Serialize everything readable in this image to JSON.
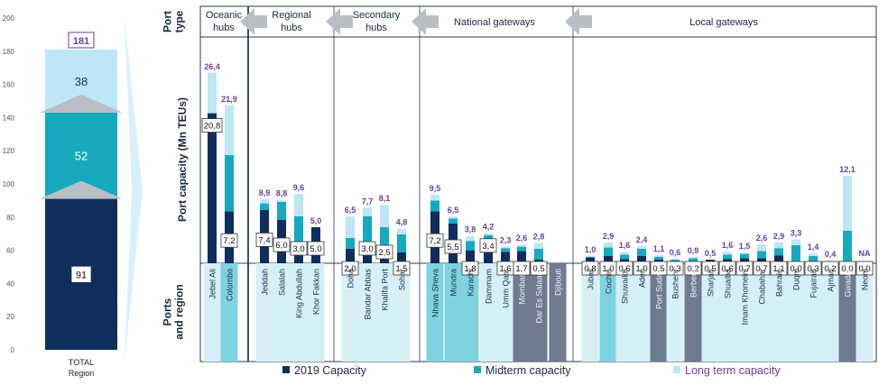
{
  "colors": {
    "capacity_2019": "#0f2e5c",
    "midterm": "#17aabf",
    "longterm": "#bde7f4",
    "label_purple": "#6a3d9a",
    "frame": "#2b3a55",
    "grid": "#9aa6b8",
    "band_light": "#d6f0f7",
    "band_mid": "#7fd3e0",
    "band_dark": "#6e7b90",
    "arrow": "#b9bec5",
    "axis_text": "#555555"
  },
  "chart_data": [
    {
      "id": "total",
      "type": "stacked-bar",
      "ylim": [
        0,
        200
      ],
      "yticks": [
        0,
        20,
        40,
        60,
        80,
        100,
        120,
        140,
        160,
        180,
        200
      ],
      "category": "TOTAL Region",
      "segments": [
        {
          "name": "2019 Capacity",
          "value": 91
        },
        {
          "name": "Midterm capacity",
          "value": 52
        },
        {
          "name": "Long term capacity",
          "value": 38
        }
      ],
      "total": "181"
    },
    {
      "id": "ports",
      "type": "stacked-bar",
      "ylabel": "Port capacity (Mn TEUs)",
      "legend": [
        "2019 Capacity",
        "Midterm capacity",
        "Long term capacity"
      ],
      "ports": [
        {
          "name": "Jebel Ali",
          "type": "Oceanic hubs",
          "c2019": 20.8,
          "mid": 0.0,
          "long": 5.6,
          "label2019": "20,8",
          "total": "26,4",
          "band": "light"
        },
        {
          "name": "Colombo",
          "type": "Oceanic hubs",
          "c2019": 7.2,
          "mid": 7.8,
          "long": 6.9,
          "label2019": "7,2",
          "total": "21,9",
          "band": "mid"
        },
        {
          "name": "Jeddah",
          "type": "Regional hubs",
          "c2019": 7.4,
          "mid": 0.9,
          "long": 0.6,
          "label2019": "7,4",
          "total": "8,9",
          "band": "light"
        },
        {
          "name": "Salalah",
          "type": "Regional hubs",
          "c2019": 6.0,
          "mid": 2.5,
          "long": 0.3,
          "label2019": "6,0",
          "total": "8,8",
          "band": "light"
        },
        {
          "name": "King Abdullah",
          "type": "Regional hubs",
          "c2019": 3.0,
          "mid": 3.5,
          "long": 3.1,
          "label2019": "3,0",
          "total": "9,6",
          "band": "light"
        },
        {
          "name": "Khor Fakkan",
          "type": "Regional hubs",
          "c2019": 5.0,
          "mid": 0.0,
          "long": 0.0,
          "label2019": "5,0",
          "total": "5,0",
          "band": "light"
        },
        {
          "name": "Doha",
          "type": "Secondary hubs",
          "c2019": 2.0,
          "mid": 1.5,
          "long": 3.0,
          "label2019": "2,0",
          "total": "6,5",
          "band": "light"
        },
        {
          "name": "Bandar Abbas",
          "type": "Secondary hubs",
          "c2019": 3.0,
          "mid": 3.5,
          "long": 1.2,
          "label2019": "3,0",
          "total": "7,7",
          "band": "light"
        },
        {
          "name": "Khalifa Port",
          "type": "Secondary hubs",
          "c2019": 2.5,
          "mid": 2.5,
          "long": 3.1,
          "label2019": "2,5",
          "total": "8,1",
          "band": "light"
        },
        {
          "name": "Sohar",
          "type": "Secondary hubs",
          "c2019": 1.5,
          "mid": 2.5,
          "long": 0.8,
          "label2019": "1,5",
          "total": "4,8",
          "band": "light"
        },
        {
          "name": "Nhava Sheva",
          "type": "National gateways",
          "c2019": 7.2,
          "mid": 1.5,
          "long": 0.8,
          "label2019": "7,2",
          "total": "9,5",
          "band": "mid"
        },
        {
          "name": "Mundra",
          "type": "National gateways",
          "c2019": 5.5,
          "mid": 0.7,
          "long": 0.3,
          "label2019": "5,5",
          "total": "6,5",
          "band": "mid"
        },
        {
          "name": "Karachi",
          "type": "National gateways",
          "c2019": 1.8,
          "mid": 1.3,
          "long": 0.7,
          "label2019": "1,8",
          "total": "3,8",
          "band": "mid"
        },
        {
          "name": "Dammam",
          "type": "National gateways",
          "c2019": 3.4,
          "mid": 0.5,
          "long": 0.3,
          "label2019": "3,4",
          "total": "4,2",
          "band": "light"
        },
        {
          "name": "Umm Qasr",
          "type": "National gateways",
          "c2019": 1.6,
          "mid": 0.5,
          "long": 0.2,
          "label2019": "1,6",
          "total": "2,3",
          "band": "light"
        },
        {
          "name": "Mombasa",
          "type": "National gateways",
          "c2019": 1.7,
          "mid": 0.6,
          "long": 0.3,
          "label2019": "1,7",
          "total": "2,6",
          "band": "dark"
        },
        {
          "name": "Dar Es Salaam",
          "type": "National gateways",
          "c2019": 0.5,
          "mid": 1.5,
          "long": 0.8,
          "label2019": "0,5",
          "total": "2,8",
          "band": "dark"
        },
        {
          "name": "Djibouti",
          "type": "National gateways",
          "c2019": 0,
          "mid": 0,
          "long": 0,
          "label2019": "",
          "total": "",
          "band": "dark"
        },
        {
          "name": "Jubail",
          "type": "Local gateways",
          "c2019": 0.8,
          "mid": 0.1,
          "long": 0.1,
          "label2019": "0,8",
          "total": "1,0",
          "band": "light"
        },
        {
          "name": "Cochin",
          "type": "Local gateways",
          "c2019": 1.0,
          "mid": 1.2,
          "long": 0.7,
          "label2019": "1,0",
          "total": "2,9",
          "band": "mid"
        },
        {
          "name": "Shuwaikh",
          "type": "Local gateways",
          "c2019": 0.6,
          "mid": 0.6,
          "long": 0.4,
          "label2019": "0,6",
          "total": "1,6",
          "band": "light"
        },
        {
          "name": "Aden",
          "type": "Local gateways",
          "c2019": 1.0,
          "mid": 1.0,
          "long": 0.4,
          "label2019": "1,0",
          "total": "2,4",
          "band": "light"
        },
        {
          "name": "Port Sudan",
          "type": "Local gateways",
          "c2019": 0.5,
          "mid": 0.4,
          "long": 0.2,
          "label2019": "0,5",
          "total": "1,1",
          "band": "dark"
        },
        {
          "name": "Bushehr",
          "type": "Local gateways",
          "c2019": 0.3,
          "mid": 0.2,
          "long": 0.1,
          "label2019": "0,3",
          "total": "0,6",
          "band": "light"
        },
        {
          "name": "Berbera",
          "type": "Local gateways",
          "c2019": 0.2,
          "mid": 0.5,
          "long": 0.2,
          "label2019": "0,2",
          "total": "0,9",
          "band": "dark"
        },
        {
          "name": "Sharjah",
          "type": "Local gateways",
          "c2019": 0.5,
          "mid": 0.0,
          "long": 0.0,
          "label2019": "0,5",
          "total": "0,5",
          "band": "light"
        },
        {
          "name": "Shuaiba",
          "type": "Local gateways",
          "c2019": 0.6,
          "mid": 0.6,
          "long": 0.4,
          "label2019": "0,6",
          "total": "1,6",
          "band": "light"
        },
        {
          "name": "Imam Khomeini",
          "type": "Local gateways",
          "c2019": 0.7,
          "mid": 0.6,
          "long": 0.2,
          "label2019": "0,7",
          "total": "1,5",
          "band": "light"
        },
        {
          "name": "Chabahar",
          "type": "Local gateways",
          "c2019": 0.7,
          "mid": 1.0,
          "long": 0.9,
          "label2019": "0,7",
          "total": "2,6",
          "band": "light"
        },
        {
          "name": "Bahrain",
          "type": "Local gateways",
          "c2019": 1.1,
          "mid": 1.0,
          "long": 0.8,
          "label2019": "1,1",
          "total": "2,9",
          "band": "light"
        },
        {
          "name": "Duqm",
          "type": "Local gateways",
          "c2019": 0.0,
          "mid": 2.5,
          "long": 0.8,
          "label2019": "0,0",
          "total": "3,3",
          "band": "light"
        },
        {
          "name": "Fujairah",
          "type": "Local gateways",
          "c2019": 0.3,
          "mid": 0.7,
          "long": 0.4,
          "label2019": "0,3",
          "total": "1,4",
          "band": "light"
        },
        {
          "name": "Ajman",
          "type": "Local gateways",
          "c2019": 0.2,
          "mid": 0.1,
          "long": 0.1,
          "label2019": "0,2",
          "total": "0,4",
          "band": "light"
        },
        {
          "name": "Gwadar",
          "type": "Local gateways",
          "c2019": 0.0,
          "mid": 4.5,
          "long": 7.6,
          "label2019": "0,0",
          "total": "12,1",
          "band": "dark"
        },
        {
          "name": "Neom",
          "type": "Local gateways",
          "c2019": 0.0,
          "mid": 0,
          "long": 0,
          "label2019": "0,0",
          "total": "NA",
          "band": "light"
        }
      ]
    }
  ],
  "port_types": [
    {
      "label": "Oceanic hubs"
    },
    {
      "label": "Regional hubs"
    },
    {
      "label": "Secondary hubs"
    },
    {
      "label": "National gateways"
    },
    {
      "label": "Local gateways"
    }
  ],
  "row_labels": {
    "port_type": "Port type",
    "capacity": "Port capacity (Mn TEUs)",
    "ports_region": "Ports and region"
  }
}
